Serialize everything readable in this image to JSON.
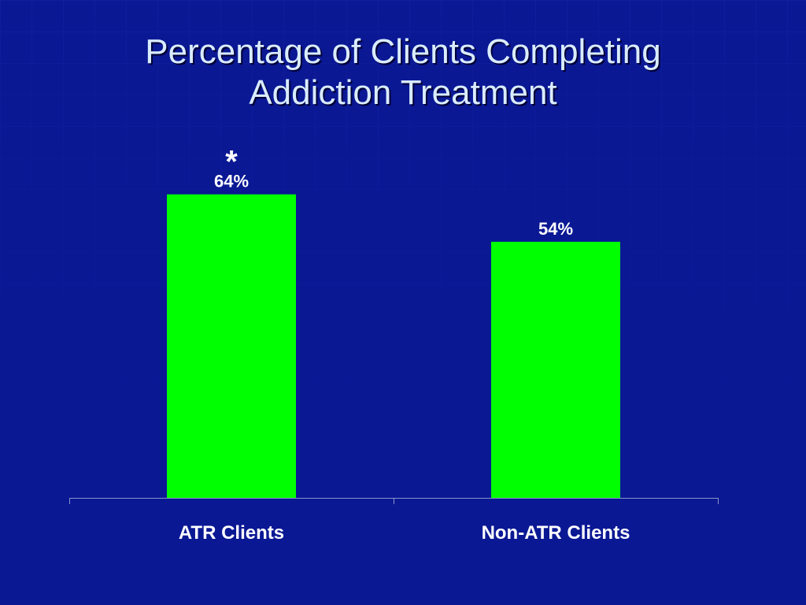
{
  "slide": {
    "title_line1": "Percentage of Clients Completing",
    "title_line2": "Addiction Treatment"
  },
  "colors": {
    "background": "#0a1894",
    "bar": "#00ff00",
    "title": "#d9ecff",
    "text": "#ffffff"
  },
  "chart_data": {
    "type": "bar",
    "title": "Percentage of Clients Completing Addiction Treatment",
    "categories": [
      "ATR Clients",
      "Non-ATR Clients"
    ],
    "series": [
      {
        "values": [
          64,
          54
        ],
        "labels": [
          "64%",
          "54%"
        ]
      }
    ],
    "annotations": [
      {
        "category": "ATR Clients",
        "text": "*"
      }
    ],
    "xlabel": "",
    "ylabel": "",
    "ylim": [
      0,
      100
    ],
    "grid": false,
    "legend": "none"
  }
}
